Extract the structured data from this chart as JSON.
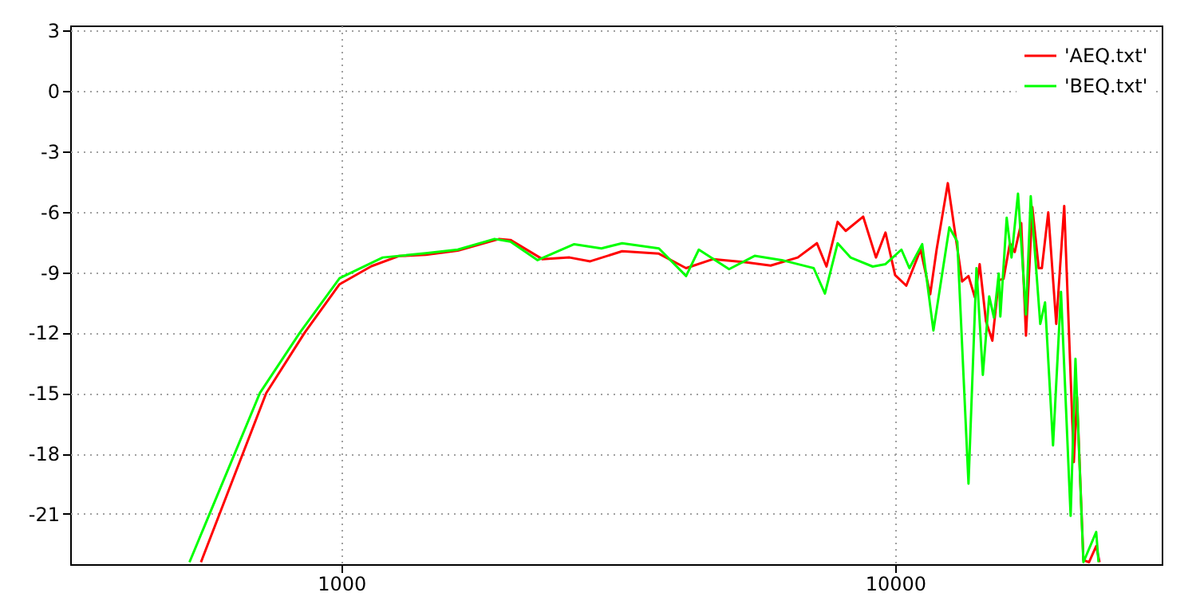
{
  "chart_data": {
    "type": "line",
    "log": "x",
    "grid": true,
    "legend": "top right",
    "xlim": [
      324,
      30300
    ],
    "xticks": [
      1000,
      10000
    ],
    "ylim": [
      -23.5,
      3.25
    ],
    "yticks": [
      -21,
      -18,
      -15,
      -12,
      -9,
      -6,
      -3,
      0,
      3
    ],
    "series": [
      {
        "name": "'AEQ.txt'",
        "color": "#ff0000",
        "x": [
          558,
          732,
          859,
          993,
          1134,
          1270,
          1421,
          1623,
          1929,
          2021,
          2307,
          2583,
          2815,
          3215,
          3746,
          4194,
          4694,
          5359,
          5960,
          6672,
          7225,
          7519,
          7876,
          8144,
          8757,
          9236,
          9610,
          10000,
          10476,
          11120,
          11573,
          11885,
          12453,
          13216,
          13570,
          13934,
          14215,
          14594,
          14985,
          15389,
          15698,
          16119,
          16444,
          16895,
          17233,
          17694,
          18169,
          18409,
          18907,
          19544,
          20204,
          21028,
          21306,
          21881,
          22400,
          23076,
          23400
        ],
        "values": [
          -23.4,
          -15,
          -12,
          -9.6,
          -8.7,
          -8.2,
          -8.14,
          -7.93,
          -7.35,
          -7.4,
          -8.35,
          -8.27,
          -8.46,
          -7.96,
          -8.08,
          -8.8,
          -8.35,
          -8.5,
          -8.67,
          -8.27,
          -7.56,
          -8.72,
          -6.5,
          -6.95,
          -6.24,
          -8.27,
          -7.03,
          -9.14,
          -9.67,
          -7.88,
          -10.1,
          -7.88,
          -4.58,
          -9.46,
          -9.19,
          -10.25,
          -8.6,
          -11.44,
          -12.4,
          -9.4,
          -9.33,
          -7.56,
          -8.0,
          -6.56,
          -12.15,
          -5.77,
          -8.8,
          -8.8,
          -6.03,
          -11.57,
          -5.71,
          -18.43,
          -15.2,
          -23.3,
          -23.4,
          -22.6,
          -23.4
        ]
      },
      {
        "name": "'BEQ.txt'",
        "color": "#00ff00",
        "x": [
          532,
          713,
          842,
          993,
          1188,
          1421,
          1623,
          1891,
          2021,
          2262,
          2634,
          2949,
          3215,
          3746,
          4194,
          4422,
          5015,
          5577,
          6244,
          7129,
          7470,
          7876,
          8307,
          9113,
          9610,
          10268,
          10614,
          11194,
          11728,
          12531,
          12954,
          13570,
          14027,
          14404,
          14790,
          15085,
          15389,
          15490,
          15905,
          16227,
          16672,
          17233,
          17579,
          18289,
          18655,
          19285,
          19935,
          20749,
          21170,
          21881,
          23076,
          23300
        ],
        "values": [
          -23.4,
          -15,
          -12,
          -9.3,
          -8.27,
          -8.06,
          -7.88,
          -7.35,
          -7.48,
          -8.4,
          -7.61,
          -7.82,
          -7.56,
          -7.82,
          -9.19,
          -7.88,
          -8.85,
          -8.19,
          -8.4,
          -8.8,
          -10.06,
          -7.56,
          -8.27,
          -8.72,
          -8.6,
          -7.88,
          -8.8,
          -7.61,
          -11.9,
          -6.77,
          -7.48,
          -19.5,
          -8.8,
          -14.1,
          -10.2,
          -11.26,
          -9.07,
          -11.2,
          -6.3,
          -8.27,
          -5.1,
          -11.1,
          -5.23,
          -11.57,
          -10.5,
          -17.6,
          -9.98,
          -21.1,
          -13.3,
          -23.4,
          -21.9,
          -23.4
        ]
      }
    ]
  }
}
